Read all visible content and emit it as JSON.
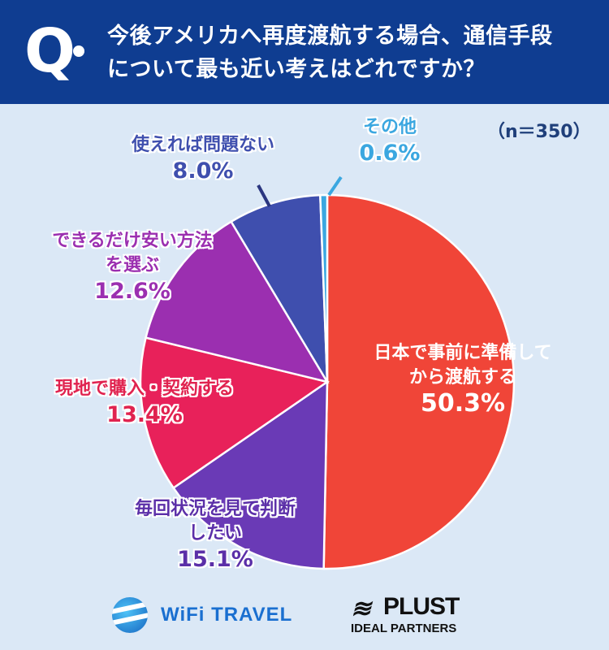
{
  "header": {
    "q_mark": "Q",
    "question_line1": "今後アメリカへ再度渡航する場合、通信手段",
    "question_line2": "について最も近い考えはどれですか？"
  },
  "sample_size": "（n＝350）",
  "chart_data": {
    "type": "pie",
    "title": "今後アメリカへ再度渡航する場合、通信手段について最も近い考えはどれですか？",
    "slices": [
      {
        "label": "日本で事前に準備してから渡航する",
        "value": 50.3,
        "color": "#f04538"
      },
      {
        "label": "毎回状況を見て判断したい",
        "value": 15.1,
        "color": "#6a3ab6"
      },
      {
        "label": "現地で購入・契約する",
        "value": 13.4,
        "color": "#e8215a"
      },
      {
        "label": "できるだけ安い方法を選ぶ",
        "value": 12.6,
        "color": "#9b2fb0"
      },
      {
        "label": "使えれば問題ない",
        "value": 8.0,
        "color": "#3f4fae"
      },
      {
        "label": "その他",
        "value": 0.6,
        "color": "#3ba7e0"
      }
    ],
    "pct_labels": [
      "50.3%",
      "15.1%",
      "13.4%",
      "12.6%",
      "8.0%",
      "0.6%"
    ]
  },
  "labels": {
    "s0_line1": "日本で事前に準備して",
    "s0_line2": "から渡航する",
    "s1_line1": "毎回状況を見て判断",
    "s1_line2": "したい",
    "s2_line1": "現地で購入・契約する",
    "s3_line1": "できるだけ安い方法",
    "s3_line2": "を選ぶ",
    "s4_line1": "使えれば問題ない",
    "s5_line1": "その他"
  },
  "logos": {
    "wifi_text": "WiFi TRAVEL",
    "plust_mark": "≋",
    "plust_name": "PLUST",
    "plust_sub": "IDEAL PARTNERS"
  },
  "colors": {
    "header_bg": "#0f3d91",
    "background": "#dbe8f6"
  }
}
